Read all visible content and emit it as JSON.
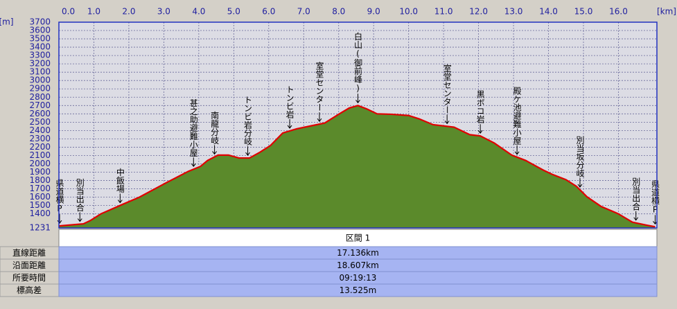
{
  "chart_data": {
    "type": "area",
    "x_unit_label": "[km]",
    "y_unit_label": "[m]",
    "x": [
      0,
      0.7,
      0.9,
      1.2,
      1.8,
      2.3,
      3.1,
      3.7,
      4.05,
      4.25,
      4.55,
      4.85,
      5.15,
      5.45,
      5.75,
      6.05,
      6.4,
      6.8,
      7.2,
      7.6,
      8.0,
      8.3,
      8.55,
      8.8,
      9.1,
      9.5,
      10.0,
      10.3,
      10.7,
      11.3,
      11.75,
      12.05,
      12.45,
      12.95,
      13.35,
      13.85,
      14.1,
      14.5,
      14.8,
      15.1,
      15.5,
      16.0,
      16.4,
      16.8,
      17.05
    ],
    "values": [
      1255,
      1280,
      1320,
      1400,
      1510,
      1600,
      1780,
      1910,
      1970,
      2040,
      2105,
      2105,
      2070,
      2070,
      2140,
      2220,
      2370,
      2420,
      2455,
      2490,
      2595,
      2670,
      2700,
      2660,
      2600,
      2595,
      2580,
      2540,
      2470,
      2440,
      2350,
      2335,
      2250,
      2105,
      2040,
      1925,
      1875,
      1810,
      1730,
      1605,
      1490,
      1400,
      1300,
      1265,
      1245
    ],
    "color": "#5b8a2b",
    "line_color": "#e00000",
    "xlim": [
      0,
      17.1
    ],
    "ylim": [
      1231,
      3700
    ],
    "xticks": [
      {
        "value": 0,
        "label": "0.0"
      },
      {
        "value": 1,
        "label": "1.0"
      },
      {
        "value": 2,
        "label": "2.0"
      },
      {
        "value": 3,
        "label": "3.0"
      },
      {
        "value": 4,
        "label": "4.0"
      },
      {
        "value": 5,
        "label": "5.0"
      },
      {
        "value": 6,
        "label": "6.0"
      },
      {
        "value": 7,
        "label": "7.0"
      },
      {
        "value": 8,
        "label": "8.0"
      },
      {
        "value": 9,
        "label": "9.0"
      },
      {
        "value": 10,
        "label": "10.0"
      },
      {
        "value": 11,
        "label": "11.0"
      },
      {
        "value": 12,
        "label": "12.0"
      },
      {
        "value": 13,
        "label": "13.0"
      },
      {
        "value": 14,
        "label": "14.0"
      },
      {
        "value": 15,
        "label": "15.0"
      },
      {
        "value": 16,
        "label": "16.0"
      }
    ],
    "yticks": [
      1231,
      1400,
      1500,
      1600,
      1700,
      1800,
      1900,
      2000,
      2100,
      2200,
      2300,
      2400,
      2500,
      2600,
      2700,
      2800,
      2900,
      3000,
      3100,
      3200,
      3300,
      3400,
      3500,
      3600,
      3700
    ],
    "grid": true,
    "annotations": [
      {
        "text": "県道横P",
        "x": 0
      },
      {
        "text": "別当出合",
        "x": 0.6
      },
      {
        "text": "中飯場",
        "x": 1.75
      },
      {
        "text": "甚之助避難小屋",
        "x": 3.85
      },
      {
        "text": "南龍分岐",
        "x": 4.45
      },
      {
        "text": "トンビ岩分岐",
        "x": 5.4
      },
      {
        "text": "トンビ岩",
        "x": 6.6
      },
      {
        "text": "室堂センター",
        "x": 7.45
      },
      {
        "text": "白山(御前峰)",
        "x": 8.55
      },
      {
        "text": "室堂センター",
        "x": 11.1
      },
      {
        "text": "黒ボコ岩",
        "x": 12.05
      },
      {
        "text": "殿ケ池避難小屋",
        "x": 13.1
      },
      {
        "text": "別当坂分岐",
        "x": 14.9
      },
      {
        "text": "別当出合",
        "x": 16.5
      },
      {
        "text": "県道横P",
        "x": 17.05
      }
    ]
  },
  "table": {
    "header": "区間 1",
    "rows": [
      [
        "直線距離",
        "17.136km"
      ],
      [
        "沿面距離",
        "18.607km"
      ],
      [
        "所要時間",
        "09:19:13"
      ],
      [
        "標高差",
        "13.525m"
      ]
    ]
  }
}
